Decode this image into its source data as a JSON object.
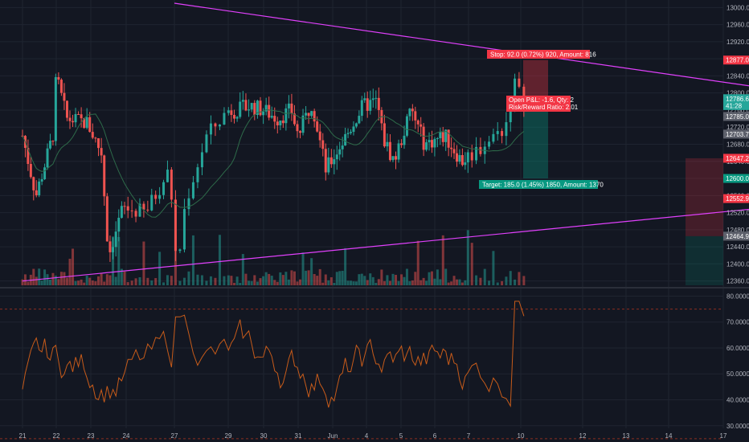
{
  "chart_data": [
    {
      "type": "candlestick",
      "panel": "price",
      "ylim": [
        12350,
        13010
      ],
      "y_ticks": [
        12360.0,
        12400.0,
        12440.0,
        12480.0,
        12520.0,
        12560.0,
        12600.0,
        12640.0,
        12680.0,
        12720.0,
        12760.0,
        12800.0,
        12840.0,
        12880.0,
        12920.0,
        12960.0,
        13000.0
      ],
      "x_ticks": [
        "21",
        "22",
        "23",
        "24",
        "27",
        "29",
        "30",
        "31",
        "Jun",
        "4",
        "5",
        "6",
        "7",
        "10",
        "12",
        "13",
        "14",
        "17"
      ],
      "price_tags": [
        {
          "label": "12877.0",
          "value": 12877.0,
          "color": "#f23645"
        },
        {
          "label": "12786.6",
          "value": 12786.6,
          "color": "#26a69a"
        },
        {
          "label": "41:28",
          "value": 12770.5,
          "color": "#26a69a"
        },
        {
          "label": "12785.0",
          "value": 12745.0,
          "color": "#5d606b"
        },
        {
          "label": "12703.7",
          "value": 12703.7,
          "color": "#5d606b"
        },
        {
          "label": "12647.2",
          "value": 12647.2,
          "color": "#f23645"
        },
        {
          "label": "12600.0",
          "value": 12600.0,
          "color": "#089981"
        },
        {
          "label": "12552.9",
          "value": 12552.9,
          "color": "#f23645"
        },
        {
          "label": "12464.9",
          "value": 12464.9,
          "color": "#5d606b"
        }
      ],
      "trendlines": [
        {
          "name": "upper-trendline",
          "color": "#e040fb",
          "from": {
            "day": 4.0,
            "price": 13010
          },
          "to": {
            "day": 19.8,
            "price": 12780
          }
        },
        {
          "name": "lower-trendline",
          "color": "#e040fb",
          "from": {
            "day": 0.0,
            "price": 12360
          },
          "to": {
            "day": 19.8,
            "price": 12553
          }
        }
      ],
      "position": {
        "entry": 12785,
        "stop": 12877,
        "target": 12600,
        "stop_label": "Stop: 92.0 (0.72%) 920, Amount: 816",
        "target_label": "Target: 185.0 (1.45%) 1850, Amount: 1370",
        "info_line1": "Open P&L: -1.6, Qty: 2",
        "info_line2": "Risk/Reward Ratio: 2.01"
      },
      "colors": {
        "up": "#26a69a",
        "down": "#ef5350",
        "ma": "#2e6b4a"
      }
    },
    {
      "type": "line",
      "panel": "rsi",
      "ylim": [
        29,
        82
      ],
      "y_ticks": [
        30.0,
        40.0,
        50.0,
        60.0,
        70.0,
        80.0
      ],
      "y_tick_labels": [
        "30.0000",
        "40.0000",
        "50.0000",
        "60.0000",
        "70.0000",
        "80.0000"
      ],
      "levels": [
        75,
        25
      ],
      "color": "#c75b1a"
    }
  ]
}
